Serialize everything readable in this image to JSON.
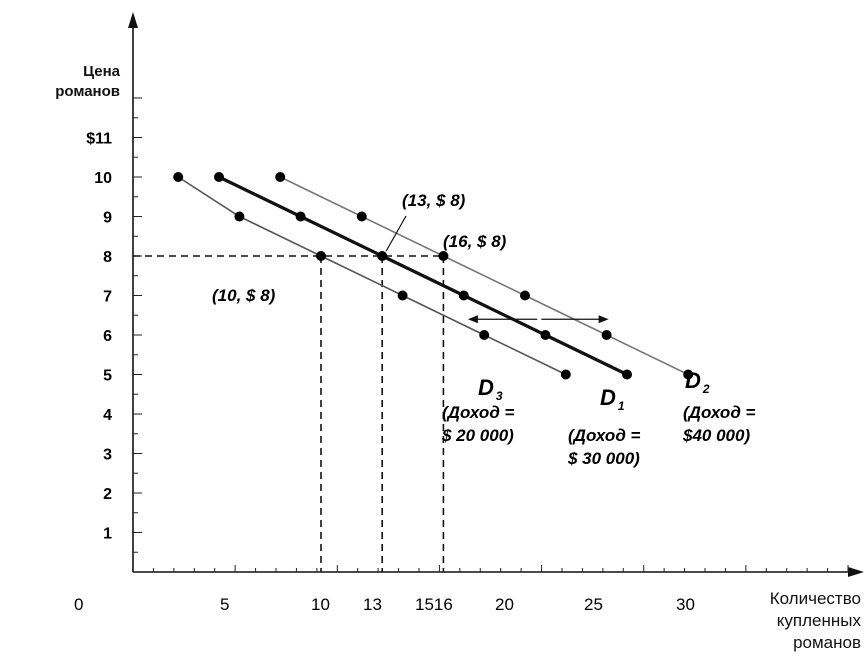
{
  "chart_data": {
    "type": "line",
    "ylabel": [
      "Цена",
      "романов"
    ],
    "xlabel": [
      "Количество",
      "купленных",
      "романов"
    ],
    "xlim": [
      0,
      32
    ],
    "ylim": [
      0,
      11
    ],
    "x_ticks": [
      "0",
      "5",
      "10",
      "13",
      "1516",
      "20",
      "25",
      "30"
    ],
    "y_ticks": [
      "1",
      "2",
      "3",
      "4",
      "5",
      "6",
      "7",
      "8",
      "9",
      "10",
      "$11"
    ],
    "series": [
      {
        "name": "D3",
        "label_main": "D",
        "label_sub": "3",
        "income_line1": "(Доход =",
        "income_line2": "$ 20 000)",
        "points": [
          [
            3,
            10
          ],
          [
            6,
            9
          ],
          [
            10,
            8
          ],
          [
            14,
            7
          ],
          [
            18,
            6
          ],
          [
            22,
            5
          ]
        ]
      },
      {
        "name": "D1",
        "label_main": "D",
        "label_sub": "1",
        "income_line1": "(Доход =",
        "income_line2": "$ 30 000)",
        "points": [
          [
            5,
            10
          ],
          [
            9,
            9
          ],
          [
            13,
            8
          ],
          [
            17,
            7
          ],
          [
            21,
            6
          ],
          [
            25,
            5
          ]
        ]
      },
      {
        "name": "D2",
        "label_main": "D",
        "label_sub": "2",
        "income_line1": "(Доход =",
        "income_line2": "$40 000)",
        "points": [
          [
            8,
            10
          ],
          [
            12,
            9
          ],
          [
            16,
            8
          ],
          [
            20,
            7
          ],
          [
            24,
            6
          ],
          [
            28,
            5
          ]
        ]
      }
    ],
    "annotations": [
      "(10, $ 8)",
      "(13, $ 8)",
      "(16, $ 8)"
    ],
    "colors": {
      "D3": "#555555",
      "D1": "#111111",
      "D2": "#777777"
    }
  }
}
